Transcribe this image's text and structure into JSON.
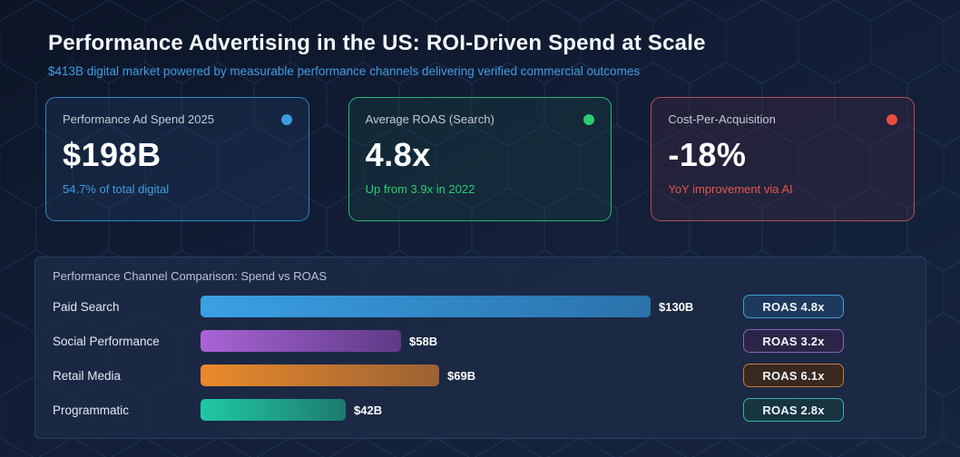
{
  "header": {
    "title": "Performance Advertising in the US: ROI-Driven Spend at Scale",
    "subtitle": "$413B digital market powered by measurable performance channels delivering verified commercial outcomes"
  },
  "stat_cards": [
    {
      "label": "Performance Ad Spend 2025",
      "value": "$198B",
      "sub": "54.7% of total digital",
      "accent": "#3f9ce0",
      "dot_color": "#3b9ddd",
      "border_color": "#2e86c1",
      "bg_color": "rgba(38,70,110,0.28)",
      "dot_icon": "status-dot"
    },
    {
      "label": "Average ROAS (Search)",
      "value": "4.8x",
      "sub": "Up from 3.9x in 2022",
      "accent": "#2ecc71",
      "dot_color": "#2ecc71",
      "border_color": "#29b573",
      "bg_color": "rgba(26,78,70,0.25)",
      "dot_icon": "status-dot"
    },
    {
      "label": "Cost-Per-Acquisition",
      "value": "-18%",
      "sub": "YoY improvement via AI",
      "accent": "#e2574b",
      "dot_color": "#e74c3c",
      "border_color": "#b05056",
      "bg_color": "rgba(78,42,70,0.28)",
      "dot_icon": "status-dot"
    }
  ],
  "chart_data": {
    "type": "bar",
    "orientation": "horizontal",
    "title": "Performance Channel Comparison: Spend vs ROAS",
    "categories": [
      "Paid Search",
      "Social Performance",
      "Retail Media",
      "Programmatic"
    ],
    "series": [
      {
        "name": "Spend ($B)",
        "values": [
          130,
          58,
          69,
          42
        ],
        "labels": [
          "$130B",
          "$58B",
          "$69B",
          "$42B"
        ]
      },
      {
        "name": "ROAS",
        "values": [
          4.8,
          3.2,
          6.1,
          2.8
        ],
        "labels": [
          "ROAS 4.8x",
          "ROAS 3.2x",
          "ROAS 6.1x",
          "ROAS 2.8x"
        ]
      }
    ],
    "xlim": [
      0,
      130
    ],
    "grid": false,
    "legend": "none",
    "bar_styles": [
      {
        "from": "#3aa0e4",
        "to": "#2a72ab",
        "badge_border": "#4a9bd5",
        "badge_bg": "#1d3a5e"
      },
      {
        "from": "#a964d6",
        "to": "#5e3a86",
        "badge_border": "#8b5fc0",
        "badge_bg": "#2c2447"
      },
      {
        "from": "#ea8a2a",
        "to": "#9b6234",
        "badge_border": "#c37b3a",
        "badge_bg": "#39291f"
      },
      {
        "from": "#1fc9a7",
        "to": "#1d7b6e",
        "badge_border": "#37b3a1",
        "badge_bg": "#173440"
      }
    ]
  }
}
